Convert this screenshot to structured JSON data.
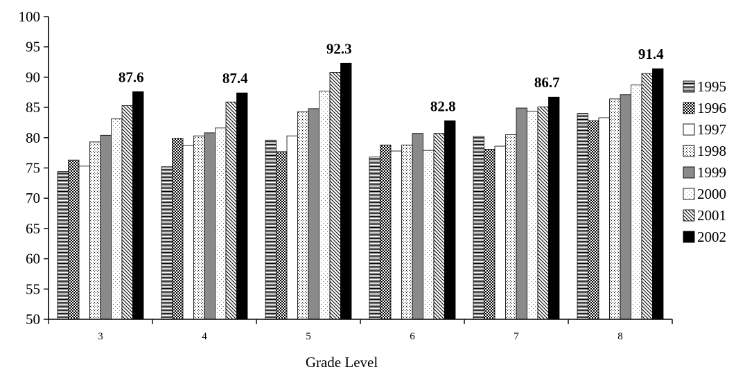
{
  "chart_data": {
    "type": "bar",
    "xlabel": "Grade Level",
    "ylabel": "",
    "ylim": [
      50,
      100
    ],
    "yticks": [
      50,
      55,
      60,
      65,
      70,
      75,
      80,
      85,
      90,
      95,
      100
    ],
    "grid": false,
    "legend_position": "right",
    "categories": [
      "3",
      "4",
      "5",
      "6",
      "7",
      "8"
    ],
    "series": [
      {
        "name": "1995",
        "pattern": "horizontal-lines",
        "values": [
          74.4,
          75.2,
          79.6,
          76.8,
          80.2,
          84.0
        ]
      },
      {
        "name": "1996",
        "pattern": "crosshatch",
        "values": [
          76.3,
          79.9,
          77.7,
          78.8,
          78.1,
          82.8
        ]
      },
      {
        "name": "1997",
        "pattern": "white",
        "values": [
          75.3,
          78.7,
          80.3,
          77.8,
          78.6,
          83.3
        ]
      },
      {
        "name": "1998",
        "pattern": "fine-dots",
        "values": [
          79.3,
          80.3,
          84.3,
          78.8,
          80.5,
          86.4
        ]
      },
      {
        "name": "1999",
        "pattern": "gray",
        "values": [
          80.4,
          80.8,
          84.8,
          80.7,
          84.9,
          87.1
        ]
      },
      {
        "name": "2000",
        "pattern": "light-dots",
        "values": [
          83.1,
          81.6,
          87.7,
          77.9,
          84.4,
          88.7
        ]
      },
      {
        "name": "2001",
        "pattern": "diagonal-lines",
        "values": [
          85.3,
          85.9,
          90.8,
          80.7,
          85.1,
          90.6
        ]
      },
      {
        "name": "2002",
        "pattern": "black",
        "values": [
          87.6,
          87.4,
          92.3,
          82.8,
          86.7,
          91.4
        ]
      }
    ],
    "data_labels": [
      "87.6",
      "87.4",
      "92.3",
      "82.8",
      "86.7",
      "91.4"
    ],
    "colors": {
      "axis": "#000000",
      "gray_fill": "#8a8a8a",
      "black_fill": "#000000"
    }
  }
}
